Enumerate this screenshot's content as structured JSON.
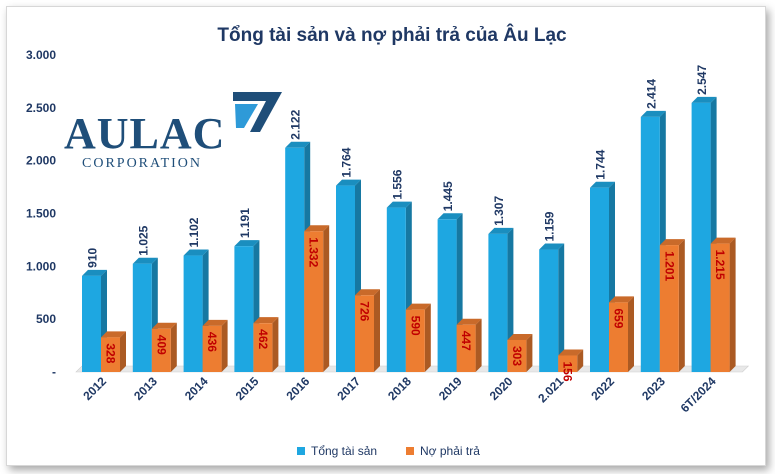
{
  "logo": {
    "name": "AULAC",
    "sub": "CORPORATION"
  },
  "chart_data": {
    "type": "bar",
    "title": "Tổng tài sản và nợ phải trả của Âu Lạc",
    "categories": [
      "2012",
      "2013",
      "2014",
      "2015",
      "2016",
      "2017",
      "2018",
      "2019",
      "2020",
      "2.021",
      "2022",
      "2023",
      "6T/2024"
    ],
    "series": [
      {
        "name": "Tổng tài sản",
        "color": "#1ea7e1",
        "values": [
          910,
          1025,
          1102,
          1191,
          2122,
          1764,
          1556,
          1445,
          1307,
          1159,
          1744,
          2414,
          2547
        ],
        "labels": [
          "910",
          "1.025",
          "1.102",
          "1.191",
          "2.122",
          "1.764",
          "1.556",
          "1.445",
          "1.307",
          "1.159",
          "1.744",
          "2.414",
          "2.547"
        ]
      },
      {
        "name": "Nợ phải trả",
        "color": "#ed7d31",
        "values": [
          328,
          409,
          436,
          462,
          1332,
          726,
          590,
          447,
          303,
          156,
          659,
          1201,
          1215
        ],
        "labels": [
          "328",
          "409",
          "436",
          "462",
          "1.332",
          "726",
          "590",
          "447",
          "303",
          "156",
          "659",
          "1.201",
          "1.215"
        ]
      }
    ],
    "ylim": [
      0,
      3000
    ],
    "yticks": [
      0,
      500,
      1000,
      1500,
      2000,
      2500,
      3000
    ],
    "ytick_labels": [
      "-",
      "500",
      "1.000",
      "1.500",
      "2.000",
      "2.500",
      "3.000"
    ],
    "legend_position": "bottom",
    "grid": false
  }
}
